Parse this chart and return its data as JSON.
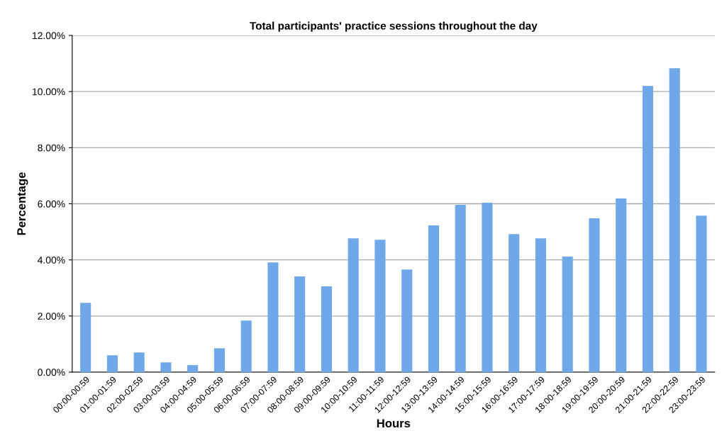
{
  "chart_data": {
    "type": "bar",
    "title": "Total participants' practice sessions throughout the day",
    "xlabel": "Hours",
    "ylabel": "Percentage",
    "categories": [
      "00:00-00:59",
      "01:00-01:59",
      "02:00-02:59",
      "03:00-03:59",
      "04:00-04:59",
      "05:00-05:59",
      "06:00-06:59",
      "07:00-07:59",
      "08:00-08:59",
      "09:00-09:59",
      "10:00-10:59",
      "11:00-11:59",
      "12:00-12:59",
      "13:00-13:59",
      "14:00-14:59",
      "15:00-15:59",
      "16:00-16:59",
      "17:00-17:59",
      "18:00-18:59",
      "19:00-19:59",
      "20:00-20:59",
      "21:00-21:59",
      "22:00-22:59",
      "23:00-23:59"
    ],
    "values": [
      2.47,
      0.6,
      0.7,
      0.35,
      0.25,
      0.85,
      1.84,
      3.91,
      3.41,
      3.06,
      4.77,
      4.72,
      3.66,
      5.23,
      5.96,
      6.04,
      4.92,
      4.77,
      4.12,
      5.48,
      6.19,
      10.2,
      10.83,
      5.58
    ],
    "color": "#6fa8e8",
    "ylim": [
      0,
      12
    ],
    "yticks": [
      {
        "value": 0,
        "label": "0.00%"
      },
      {
        "value": 2,
        "label": "2.00%"
      },
      {
        "value": 4,
        "label": "4.00%"
      },
      {
        "value": 6,
        "label": "6.00%"
      },
      {
        "value": 8,
        "label": "8.00%"
      },
      {
        "value": 10,
        "label": "10.00%"
      },
      {
        "value": 12,
        "label": "12.00%"
      }
    ],
    "grid": "y",
    "legend": false
  }
}
